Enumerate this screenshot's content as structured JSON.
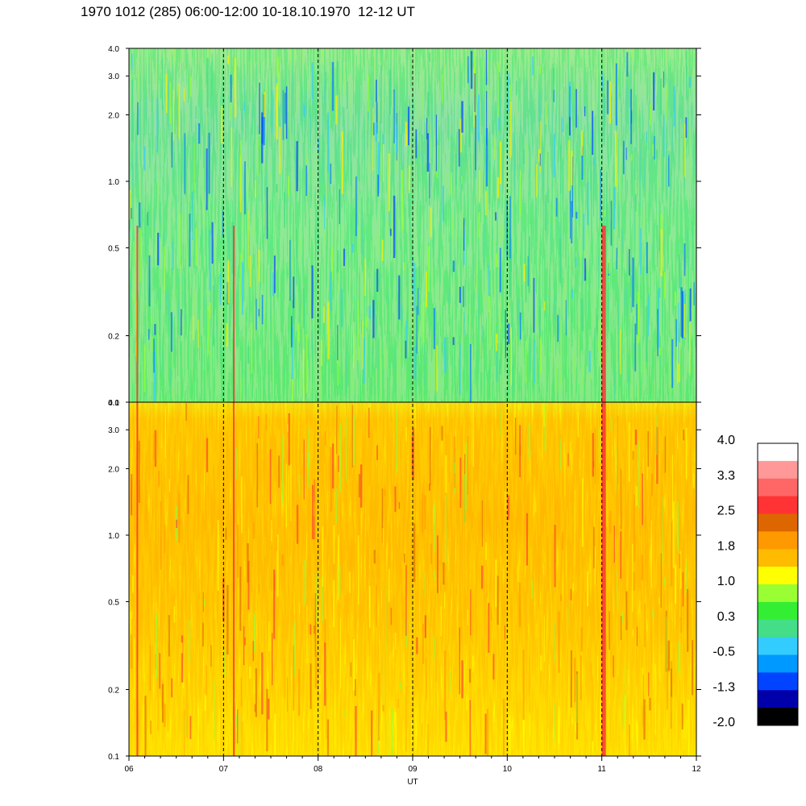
{
  "title": "1970 1012 (285) 06:00-12:00 10-18.10.1970  12-12 UT",
  "chart_data": [
    {
      "type": "heatmap",
      "panel": "top",
      "y_ticks": [
        "0.1",
        "0.2",
        "0.5",
        "1.0",
        "2.0",
        "3.0",
        "4.0"
      ],
      "y_values": [
        0.1,
        0.2,
        0.5,
        1.0,
        2.0,
        3.0,
        4.0
      ],
      "ylim": [
        0.1,
        4.0
      ],
      "yscale": "log",
      "xlim": [
        6,
        12
      ],
      "dominant_levels": [
        "green",
        "cyan-green",
        "light-green"
      ],
      "dashed_hours": [
        7,
        8,
        9,
        10,
        11
      ]
    },
    {
      "type": "heatmap",
      "panel": "bottom",
      "y_ticks": [
        "0.1",
        "0.2",
        "0.5",
        "1.0",
        "2.0",
        "3.0",
        "4.0"
      ],
      "y_values": [
        0.1,
        0.2,
        0.5,
        1.0,
        2.0,
        3.0,
        4.0
      ],
      "ylim": [
        0.1,
        4.0
      ],
      "yscale": "log",
      "x_ticks": [
        "06",
        "07",
        "08",
        "09",
        "10",
        "11",
        "12"
      ],
      "x_values": [
        6,
        7,
        8,
        9,
        10,
        11,
        12
      ],
      "xlim": [
        6,
        12
      ],
      "xlabel": "UT",
      "dominant_levels": [
        "orange",
        "yellow",
        "light-green"
      ],
      "dashed_hours": [
        7,
        8,
        9,
        10,
        11
      ]
    }
  ],
  "colorbar": {
    "labels": [
      "4.0",
      "3.3",
      "2.5",
      "1.8",
      "1.0",
      "0.3",
      "-0.5",
      "-1.3",
      "-2.0"
    ],
    "colors": [
      "#ffffff",
      "#ff9999",
      "#ff6666",
      "#ff3333",
      "#dd6600",
      "#ff9900",
      "#ffbb00",
      "#ffff00",
      "#99ff33",
      "#33ee33",
      "#44dd88",
      "#33ccff",
      "#0099ff",
      "#0044ff",
      "#0000aa",
      "#000000"
    ]
  }
}
